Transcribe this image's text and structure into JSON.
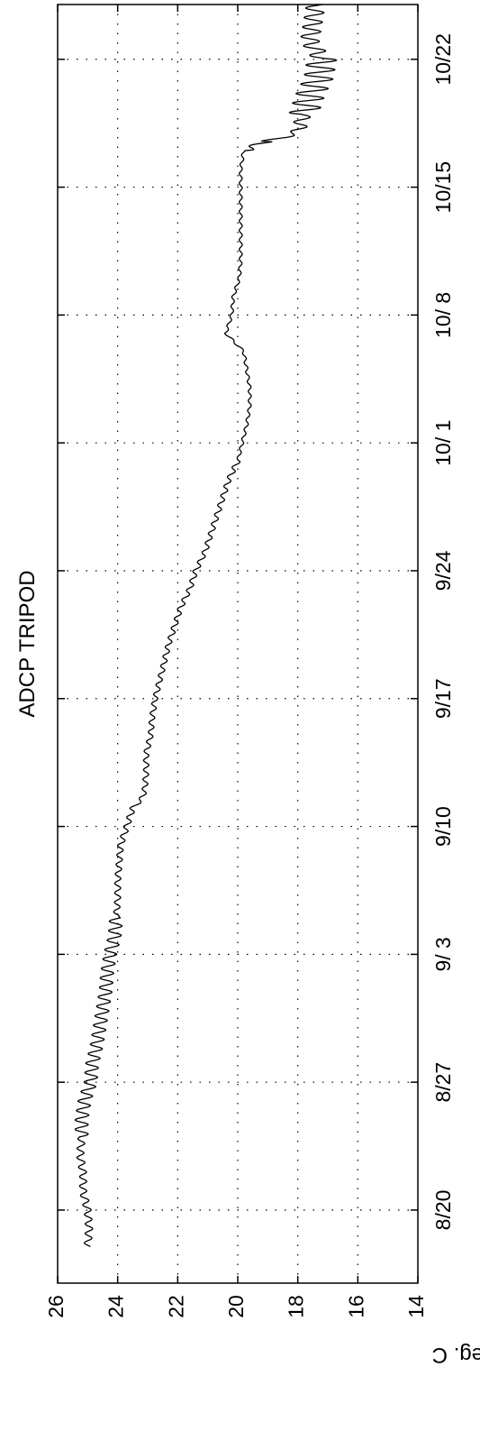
{
  "chart_data": {
    "type": "line",
    "title": "ADCP TRIPOD",
    "ylabel": "Deg. C",
    "xlabel": "",
    "ylim": [
      14,
      26
    ],
    "yticks": [
      26,
      24,
      22,
      20,
      18,
      16,
      14
    ],
    "xticks": [
      {
        "day": 4,
        "label": "8/20"
      },
      {
        "day": 11,
        "label": "8/27"
      },
      {
        "day": 18,
        "label": "9/ 3"
      },
      {
        "day": 25,
        "label": "9/10"
      },
      {
        "day": 32,
        "label": "9/17"
      },
      {
        "day": 39,
        "label": "9/24"
      },
      {
        "day": 46,
        "label": "10/ 1"
      },
      {
        "day": 53,
        "label": "10/ 8"
      },
      {
        "day": 60,
        "label": "10/15"
      },
      {
        "day": 67,
        "label": "10/22"
      }
    ],
    "xlim": [
      0,
      70
    ],
    "x_units": "days since 8/16",
    "grid": true,
    "orientation": "rotated-90-ccw",
    "series": [
      {
        "name": "",
        "color": "#000000",
        "points": [
          [
            2.0,
            25.0
          ],
          [
            3.0,
            24.95
          ],
          [
            4.0,
            25.0
          ],
          [
            5.0,
            25.15
          ],
          [
            6.0,
            25.15
          ],
          [
            7.0,
            25.25
          ],
          [
            8.0,
            25.2
          ],
          [
            9.0,
            25.2
          ],
          [
            10.0,
            25.1
          ],
          [
            11.0,
            24.9
          ],
          [
            12.0,
            24.85
          ],
          [
            13.0,
            24.7
          ],
          [
            14.0,
            24.6
          ],
          [
            15.0,
            24.5
          ],
          [
            16.0,
            24.4
          ],
          [
            17.0,
            24.35
          ],
          [
            18.0,
            24.25
          ],
          [
            19.0,
            24.1
          ],
          [
            20.0,
            24.05
          ],
          [
            21.0,
            24.0
          ],
          [
            22.0,
            24.0
          ],
          [
            23.0,
            23.95
          ],
          [
            24.0,
            23.9
          ],
          [
            25.0,
            23.7
          ],
          [
            26.0,
            23.5
          ],
          [
            26.5,
            23.2
          ],
          [
            27.0,
            23.1
          ],
          [
            28.0,
            23.05
          ],
          [
            29.0,
            23.05
          ],
          [
            30.0,
            22.9
          ],
          [
            31.0,
            22.85
          ],
          [
            32.0,
            22.75
          ],
          [
            33.0,
            22.6
          ],
          [
            34.0,
            22.45
          ],
          [
            35.0,
            22.3
          ],
          [
            36.0,
            22.1
          ],
          [
            37.0,
            21.9
          ],
          [
            38.0,
            21.6
          ],
          [
            39.0,
            21.4
          ],
          [
            40.0,
            21.1
          ],
          [
            41.0,
            20.9
          ],
          [
            42.0,
            20.7
          ],
          [
            43.0,
            20.5
          ],
          [
            44.0,
            20.3
          ],
          [
            45.0,
            20.0
          ],
          [
            46.0,
            19.85
          ],
          [
            47.0,
            19.7
          ],
          [
            48.0,
            19.6
          ],
          [
            49.0,
            19.6
          ],
          [
            50.0,
            19.7
          ],
          [
            51.0,
            19.8
          ],
          [
            51.5,
            20.1
          ],
          [
            52.0,
            20.4
          ],
          [
            52.5,
            20.3
          ],
          [
            53.0,
            20.2
          ],
          [
            54.0,
            20.15
          ],
          [
            55.0,
            19.95
          ],
          [
            56.0,
            19.9
          ],
          [
            57.0,
            19.9
          ],
          [
            58.0,
            19.9
          ],
          [
            59.0,
            19.9
          ],
          [
            60.0,
            19.9
          ],
          [
            61.0,
            19.9
          ],
          [
            62.0,
            19.8
          ],
          [
            62.5,
            19.0
          ],
          [
            63.0,
            18.0
          ],
          [
            64.0,
            17.8
          ],
          [
            65.0,
            17.6
          ],
          [
            66.0,
            17.3
          ],
          [
            67.0,
            17.2
          ],
          [
            67.5,
            17.4
          ],
          [
            68.0,
            17.6
          ],
          [
            69.0,
            17.5
          ],
          [
            70.0,
            17.4
          ]
        ]
      }
    ]
  }
}
